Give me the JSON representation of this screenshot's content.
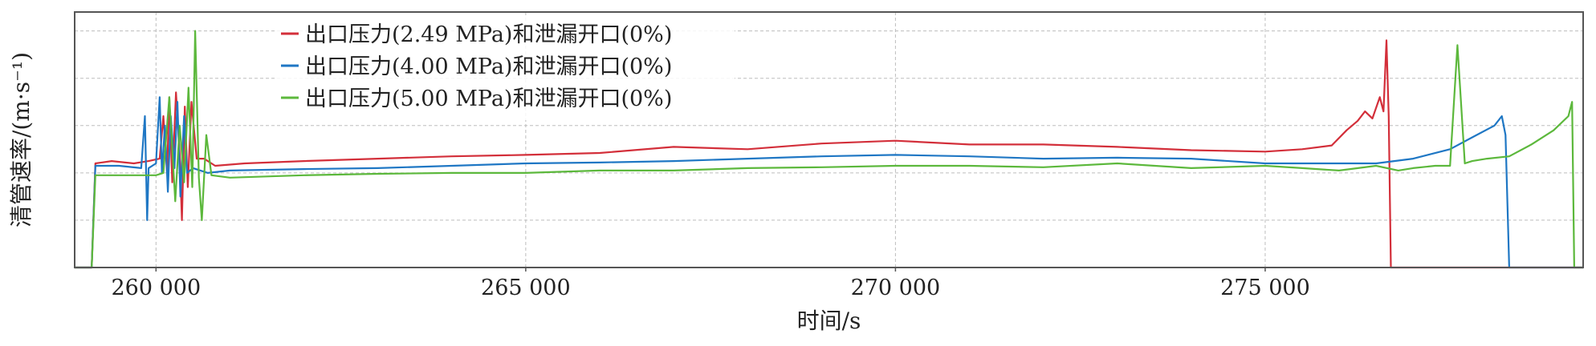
{
  "chart_data": {
    "type": "line",
    "title": "",
    "xlabel": "时间/s",
    "ylabel": "清管速率/(m·s⁻¹)",
    "xlim": [
      258900,
      279300
    ],
    "ylim": [
      0,
      5.4
    ],
    "xticks": [
      260000,
      265000,
      270000,
      275000
    ],
    "xtick_labels": [
      "260 000",
      "265  000",
      "270 000",
      "275 000"
    ],
    "ygrid": [
      1,
      2,
      3,
      4,
      5
    ],
    "grid": true,
    "legend_position": "top-left",
    "series": [
      {
        "name": "出口压力(2.49 MPa)和泄漏开口(0%)",
        "color": "#d32f3a",
        "x": [
          258900,
          259130,
          259180,
          259400,
          259700,
          259900,
          260050,
          260100,
          260150,
          260180,
          260220,
          260270,
          260320,
          260350,
          260390,
          260430,
          260480,
          260550,
          260650,
          260800,
          261200,
          262000,
          263000,
          264000,
          265000,
          266000,
          267000,
          268000,
          269000,
          270000,
          271000,
          272000,
          273000,
          274000,
          275000,
          275500,
          275900,
          276100,
          276250,
          276350,
          276450,
          276550,
          276600,
          276640,
          276670,
          276700,
          279300
        ],
        "y": [
          0,
          0,
          2.2,
          2.25,
          2.2,
          2.25,
          2.3,
          3.2,
          2.0,
          3.6,
          1.8,
          3.7,
          2.4,
          1.0,
          3.4,
          1.7,
          3.5,
          2.3,
          2.3,
          2.15,
          2.2,
          2.25,
          2.3,
          2.35,
          2.38,
          2.42,
          2.55,
          2.5,
          2.62,
          2.68,
          2.6,
          2.6,
          2.55,
          2.48,
          2.45,
          2.5,
          2.58,
          2.9,
          3.1,
          3.3,
          3.15,
          3.6,
          3.3,
          4.8,
          3.2,
          0,
          0
        ]
      },
      {
        "name": "出口压力(4.00 MPa)和泄漏开口(0%)",
        "color": "#1f77c4",
        "x": [
          258900,
          259130,
          259180,
          259500,
          259800,
          259850,
          259880,
          259900,
          260000,
          260050,
          260080,
          260120,
          260160,
          260200,
          260250,
          260290,
          260330,
          260380,
          260420,
          260500,
          260700,
          261000,
          262000,
          263000,
          264000,
          265000,
          266000,
          267000,
          268000,
          269000,
          270000,
          271000,
          272000,
          273000,
          274000,
          275000,
          276000,
          276500,
          277000,
          277500,
          277800,
          278100,
          278200,
          278250,
          278300,
          279300
        ],
        "y": [
          0,
          0,
          2.15,
          2.15,
          2.1,
          3.2,
          1.0,
          2.1,
          2.2,
          3.6,
          2.0,
          3.0,
          1.6,
          3.2,
          2.1,
          3.5,
          1.5,
          3.2,
          2.0,
          2.1,
          2.0,
          2.05,
          2.08,
          2.1,
          2.15,
          2.2,
          2.22,
          2.25,
          2.3,
          2.35,
          2.38,
          2.35,
          2.3,
          2.32,
          2.3,
          2.2,
          2.2,
          2.2,
          2.3,
          2.5,
          2.75,
          3.0,
          3.2,
          2.8,
          0,
          0
        ]
      },
      {
        "name": "出口压力(5.00 MPa)和泄漏开口(0%)",
        "color": "#5cb83c",
        "x": [
          258900,
          259130,
          259180,
          259500,
          260000,
          260100,
          260180,
          260260,
          260320,
          260380,
          260440,
          260490,
          260530,
          260580,
          260620,
          260680,
          260750,
          261000,
          262000,
          263000,
          264000,
          265000,
          266000,
          267000,
          268000,
          269000,
          270000,
          271000,
          272000,
          273000,
          274000,
          275000,
          275500,
          276000,
          276500,
          276800,
          277000,
          277300,
          277500,
          277600,
          277700,
          277800,
          278000,
          278300,
          278600,
          278900,
          279100,
          279150,
          279180,
          279300
        ],
        "y": [
          0,
          0,
          1.95,
          1.95,
          1.95,
          2.0,
          3.6,
          1.4,
          3.0,
          1.8,
          3.8,
          1.7,
          5.0,
          1.9,
          1.0,
          2.8,
          1.95,
          1.9,
          1.95,
          1.98,
          2.0,
          2.0,
          2.05,
          2.05,
          2.1,
          2.12,
          2.15,
          2.15,
          2.12,
          2.2,
          2.1,
          2.15,
          2.1,
          2.05,
          2.15,
          2.05,
          2.1,
          2.15,
          2.15,
          4.7,
          2.2,
          2.25,
          2.3,
          2.35,
          2.6,
          2.9,
          3.2,
          3.5,
          0,
          0
        ]
      }
    ]
  }
}
